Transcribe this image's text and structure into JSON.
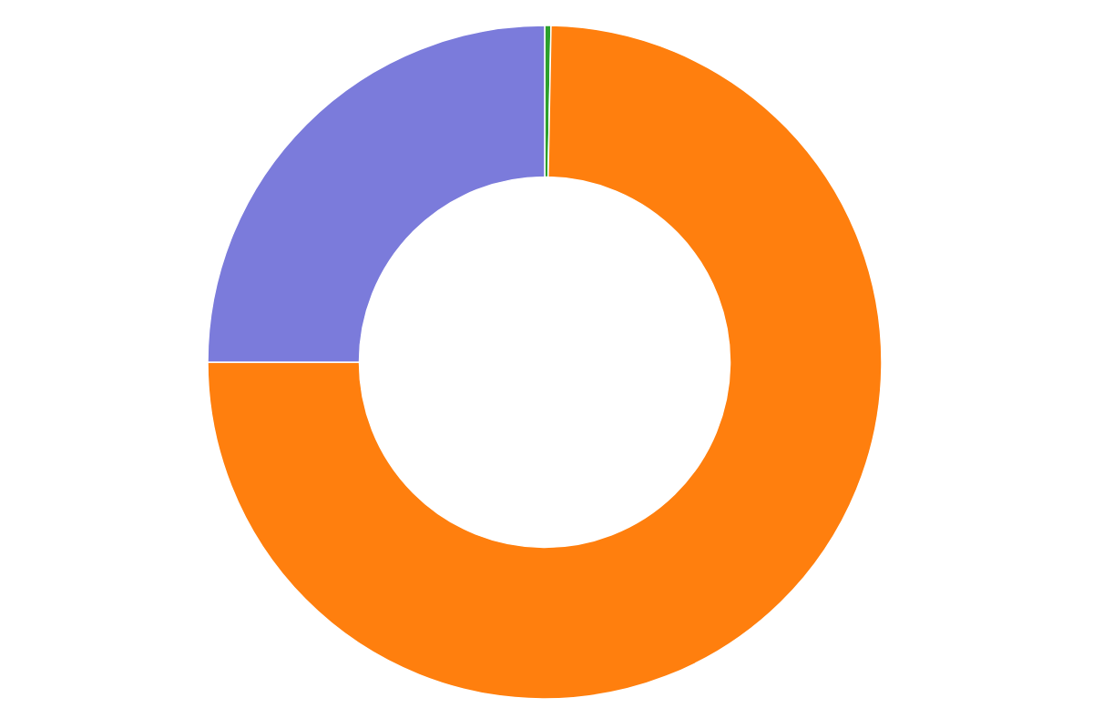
{
  "chart_data": {
    "type": "pie",
    "values": [
      0.3,
      74.7,
      0.0,
      25.0
    ],
    "colors": [
      "#2ca02c",
      "#ff7f0e",
      "#d62728",
      "#7b7bdb"
    ]
  }
}
